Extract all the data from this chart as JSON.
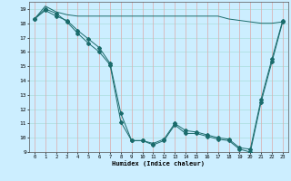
{
  "xlabel": "Humidex (Indice chaleur)",
  "bg_color": "#cceeff",
  "plot_bg_color": "#cceeff",
  "line_color": "#1a6b6b",
  "grid_color_h": "#aadddd",
  "grid_color_v": "#ddaaaa",
  "xlim": [
    -0.5,
    23.5
  ],
  "ylim": [
    9,
    19.5
  ],
  "yticks": [
    9,
    10,
    11,
    12,
    13,
    14,
    15,
    16,
    17,
    18,
    19
  ],
  "xticks": [
    0,
    1,
    2,
    3,
    4,
    5,
    6,
    7,
    8,
    9,
    10,
    11,
    12,
    13,
    14,
    15,
    16,
    17,
    18,
    19,
    20,
    21,
    22,
    23
  ],
  "line1_x": [
    0,
    1,
    2,
    3,
    4,
    5,
    6,
    7,
    8,
    9,
    10,
    11,
    12,
    13,
    14,
    15,
    16,
    17,
    18,
    19,
    20,
    21,
    22,
    23
  ],
  "line1_y": [
    18.3,
    19.2,
    18.8,
    18.6,
    18.5,
    18.5,
    18.5,
    18.5,
    18.5,
    18.5,
    18.5,
    18.5,
    18.5,
    18.5,
    18.5,
    18.5,
    18.5,
    18.5,
    18.3,
    18.2,
    18.1,
    18.0,
    18.0,
    18.1
  ],
  "line2_x": [
    0,
    1,
    2,
    3,
    4,
    5,
    6,
    7,
    8,
    9,
    10,
    11,
    12,
    13,
    14,
    15,
    16,
    17,
    18,
    19,
    20,
    21,
    22,
    23
  ],
  "line2_y": [
    18.3,
    19.0,
    18.7,
    18.1,
    17.3,
    16.6,
    16.0,
    15.1,
    11.1,
    9.8,
    9.8,
    9.5,
    9.8,
    10.9,
    10.3,
    10.3,
    10.1,
    9.9,
    9.8,
    9.2,
    9.0,
    12.5,
    15.3,
    18.1
  ],
  "line3_x": [
    0,
    1,
    2,
    3,
    4,
    5,
    6,
    7,
    8,
    9,
    10,
    11,
    12,
    13,
    14,
    15,
    16,
    17,
    18,
    19,
    20,
    21,
    22,
    23
  ],
  "line3_y": [
    18.3,
    18.9,
    18.5,
    18.2,
    17.5,
    16.9,
    16.3,
    15.2,
    11.7,
    9.8,
    9.8,
    9.6,
    9.9,
    11.0,
    10.5,
    10.4,
    10.2,
    10.0,
    9.9,
    9.3,
    9.2,
    12.7,
    15.5,
    18.2
  ]
}
